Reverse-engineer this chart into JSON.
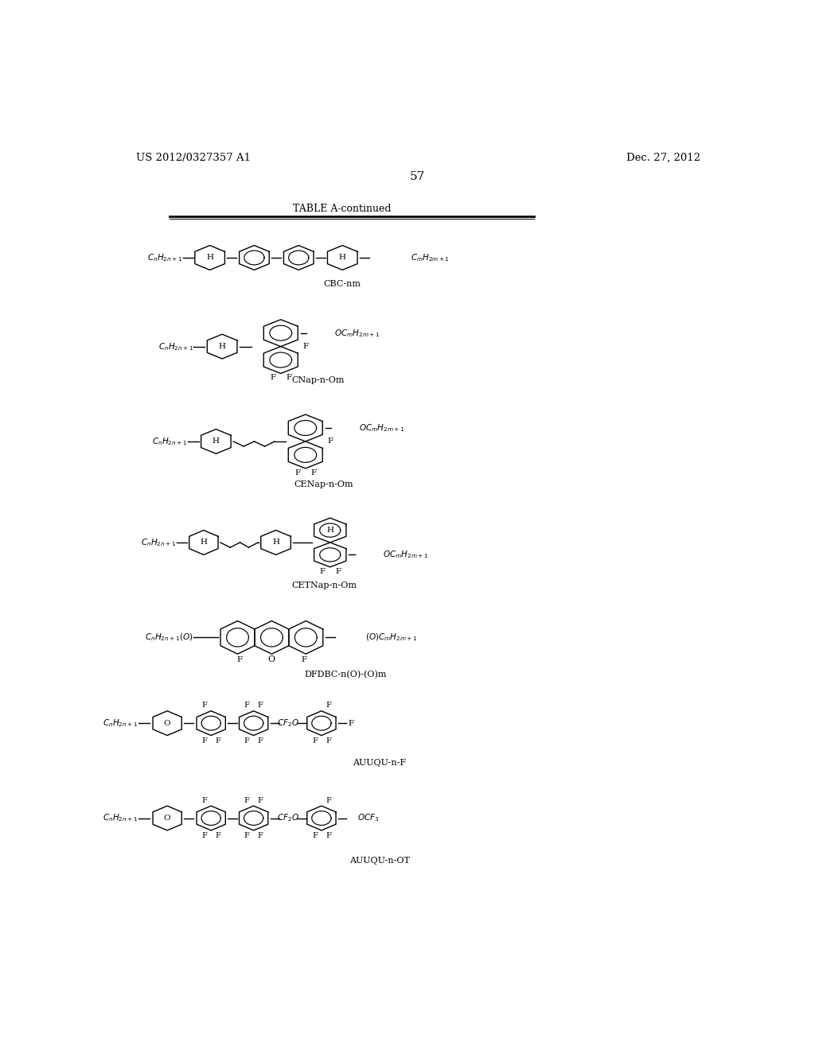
{
  "page_number": "57",
  "patent_left": "US 2012/0327357 A1",
  "patent_right": "Dec. 27, 2012",
  "table_title": "TABLE A-continued",
  "background": "#ffffff",
  "compounds": [
    {
      "name": "CBC-nm"
    },
    {
      "name": "CNap-n-Om"
    },
    {
      "name": "CENap-n-Om"
    },
    {
      "name": "CETNap-n-Om"
    },
    {
      "name": "DFDBC-n(O)-(O)m"
    },
    {
      "name": "AUUQU-n-F"
    },
    {
      "name": "AUUQU-n-OT"
    }
  ]
}
